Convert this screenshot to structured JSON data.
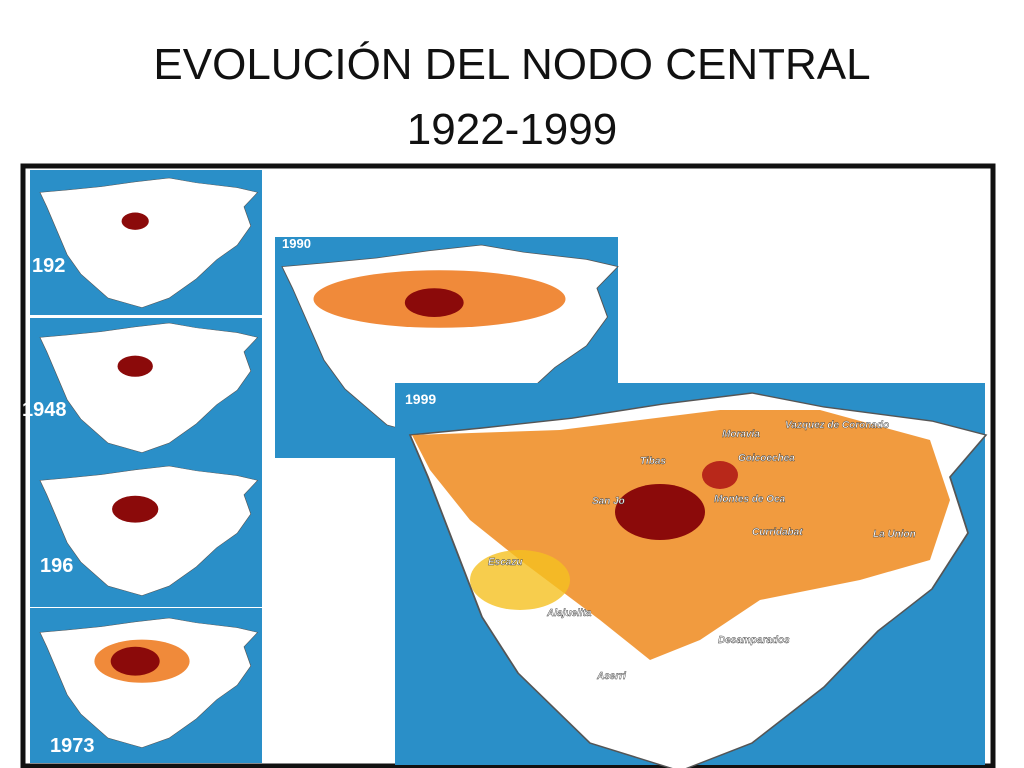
{
  "title": {
    "line1": "EVOLUCIÓN DEL NODO CENTRAL",
    "line2": "1922-1999"
  },
  "panels": [
    {
      "year": "192"
    },
    {
      "year": "1948"
    },
    {
      "year": "196"
    },
    {
      "year": "1973"
    },
    {
      "year": "1990"
    }
  ],
  "main_map": {
    "year": "1999",
    "places": [
      "Vazquez de Coronado",
      "Moravia",
      "Tibas",
      "Goicoechea",
      "San Jo",
      "Montes de Oca",
      "Curridabat",
      "La Union",
      "Escazu",
      "Alajuelita",
      "Desamparados",
      "Aserri"
    ]
  }
}
